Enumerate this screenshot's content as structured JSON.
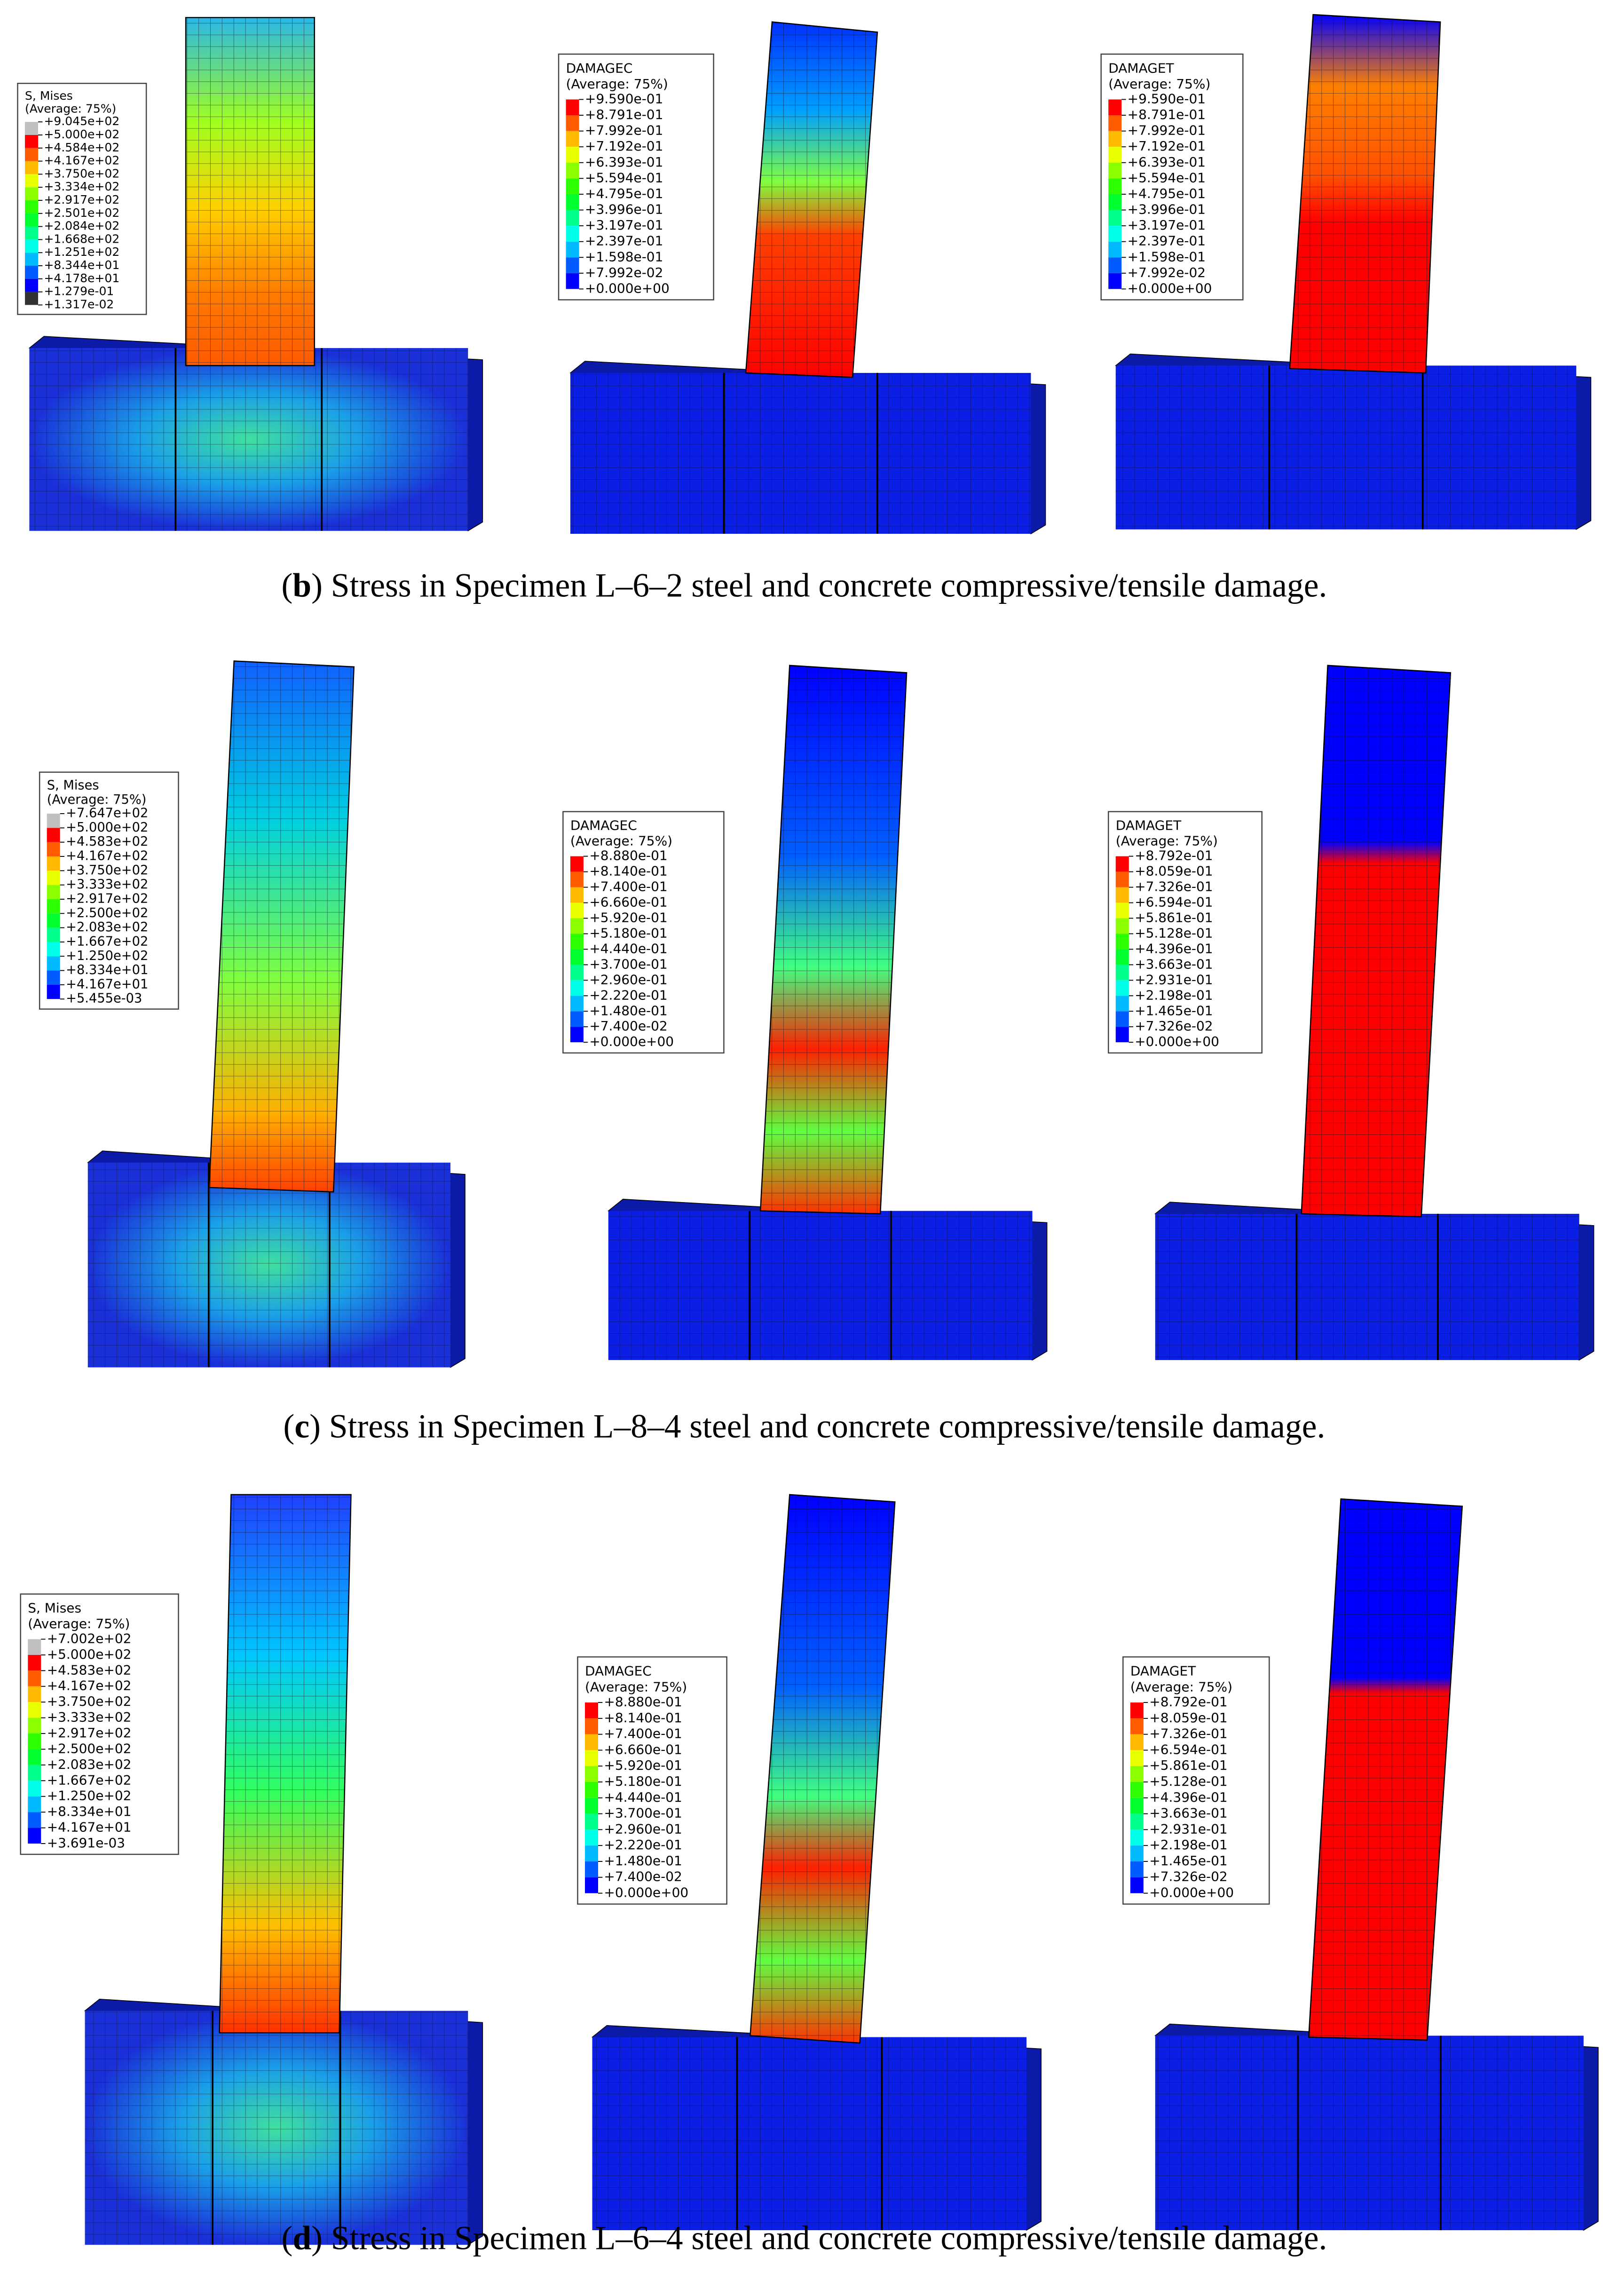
{
  "rows": [
    {
      "caption": [
        "(",
        "b",
        ") Stress in Specimen L–6–2 steel and concrete compressive/tensile damage."
      ],
      "legends": [
        {
          "title": [
            "S, Mises",
            "(Average: 75%)"
          ],
          "values": [
            "+9.045e+02",
            "+5.000e+02",
            "+4.584e+02",
            "+4.167e+02",
            "+3.750e+02",
            "+3.334e+02",
            "+2.917e+02",
            "+2.501e+02",
            "+2.084e+02",
            "+1.668e+02",
            "+1.251e+02",
            "+8.344e+01",
            "+4.178e+01",
            "+1.279e-01",
            "+1.317e-02"
          ]
        },
        {
          "title": [
            "DAMAGEC",
            "(Average: 75%)"
          ],
          "values": [
            "+9.590e-01",
            "+8.791e-01",
            "+7.992e-01",
            "+7.192e-01",
            "+6.393e-01",
            "+5.594e-01",
            "+4.795e-01",
            "+3.996e-01",
            "+3.197e-01",
            "+2.397e-01",
            "+1.598e-01",
            "+7.992e-02",
            "+0.000e+00"
          ]
        },
        {
          "title": [
            "DAMAGET",
            "(Average: 75%)"
          ],
          "values": [
            "+9.590e-01",
            "+8.791e-01",
            "+7.992e-01",
            "+7.192e-01",
            "+6.393e-01",
            "+5.594e-01",
            "+4.795e-01",
            "+3.996e-01",
            "+3.197e-01",
            "+2.397e-01",
            "+1.598e-01",
            "+7.992e-02",
            "+0.000e+00"
          ]
        }
      ]
    },
    {
      "caption": [
        "(",
        "c",
        ") Stress in Specimen L–8–4 steel and concrete compressive/tensile damage."
      ],
      "legends": [
        {
          "title": [
            "S, Mises",
            "(Average: 75%)"
          ],
          "values": [
            "+7.647e+02",
            "+5.000e+02",
            "+4.583e+02",
            "+4.167e+02",
            "+3.750e+02",
            "+3.333e+02",
            "+2.917e+02",
            "+2.500e+02",
            "+2.083e+02",
            "+1.667e+02",
            "+1.250e+02",
            "+8.334e+01",
            "+4.167e+01",
            "+5.455e-03"
          ]
        },
        {
          "title": [
            "DAMAGEC",
            "(Average: 75%)"
          ],
          "values": [
            "+8.880e-01",
            "+8.140e-01",
            "+7.400e-01",
            "+6.660e-01",
            "+5.920e-01",
            "+5.180e-01",
            "+4.440e-01",
            "+3.700e-01",
            "+2.960e-01",
            "+2.220e-01",
            "+1.480e-01",
            "+7.400e-02",
            "+0.000e+00"
          ]
        },
        {
          "title": [
            "DAMAGET",
            "(Average: 75%)"
          ],
          "values": [
            "+8.792e-01",
            "+8.059e-01",
            "+7.326e-01",
            "+6.594e-01",
            "+5.861e-01",
            "+5.128e-01",
            "+4.396e-01",
            "+3.663e-01",
            "+2.931e-01",
            "+2.198e-01",
            "+1.465e-01",
            "+7.326e-02",
            "+0.000e+00"
          ]
        }
      ]
    },
    {
      "caption": [
        "(",
        "d",
        ") Stress in Specimen L–6–4 steel and concrete compressive/tensile damage."
      ],
      "legends": [
        {
          "title": [
            "S, Mises",
            "(Average: 75%)"
          ],
          "values": [
            "+7.002e+02",
            "+5.000e+02",
            "+4.583e+02",
            "+4.167e+02",
            "+3.750e+02",
            "+3.333e+02",
            "+2.917e+02",
            "+2.500e+02",
            "+2.083e+02",
            "+1.667e+02",
            "+1.250e+02",
            "+8.334e+01",
            "+4.167e+01",
            "+3.691e-03"
          ]
        },
        {
          "title": [
            "DAMAGEC",
            "(Average: 75%)"
          ],
          "values": [
            "+8.880e-01",
            "+8.140e-01",
            "+7.400e-01",
            "+6.660e-01",
            "+5.920e-01",
            "+5.180e-01",
            "+4.440e-01",
            "+3.700e-01",
            "+2.960e-01",
            "+2.220e-01",
            "+1.480e-01",
            "+7.400e-02",
            "+0.000e+00"
          ]
        },
        {
          "title": [
            "DAMAGET",
            "(Average: 75%)"
          ],
          "values": [
            "+8.792e-01",
            "+8.059e-01",
            "+7.326e-01",
            "+6.594e-01",
            "+5.861e-01",
            "+5.128e-01",
            "+4.396e-01",
            "+3.663e-01",
            "+2.931e-01",
            "+2.198e-01",
            "+1.465e-01",
            "+7.326e-02",
            "+0.000e+00"
          ]
        }
      ]
    }
  ]
}
